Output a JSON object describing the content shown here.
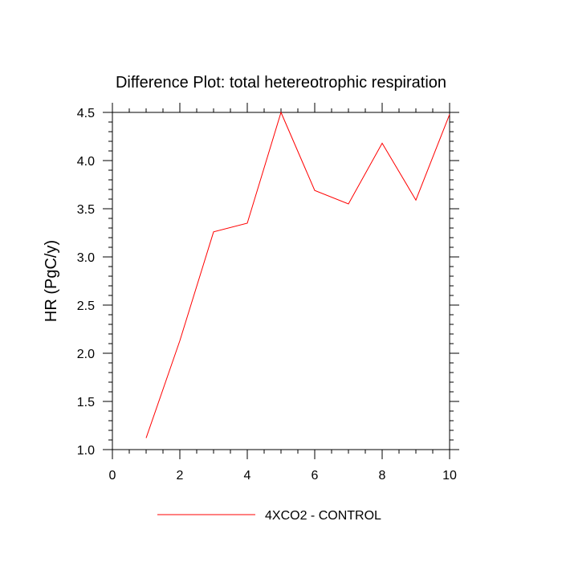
{
  "chart_data": {
    "type": "line",
    "title": "Difference Plot: total hetereotrophic respiration",
    "xlabel": "",
    "ylabel": "HR  (PgC/y)",
    "xlim": [
      0,
      10
    ],
    "ylim": [
      1.0,
      4.5
    ],
    "x_ticks": [
      0,
      2,
      4,
      6,
      8,
      10
    ],
    "x_tick_labels": [
      "0",
      "2",
      "4",
      "6",
      "8",
      "10"
    ],
    "y_ticks": [
      1.0,
      1.5,
      2.0,
      2.5,
      3.0,
      3.5,
      4.0,
      4.5
    ],
    "y_tick_labels": [
      "1.0",
      "1.5",
      "2.0",
      "2.5",
      "3.0",
      "3.5",
      "4.0",
      "4.5"
    ],
    "grid": false,
    "legend_position": "bottom",
    "series": [
      {
        "name": "4XCO2 - CONTROL",
        "color": "#ff0000",
        "x": [
          1,
          2,
          3,
          4,
          5,
          6,
          7,
          8,
          9,
          10
        ],
        "y": [
          1.12,
          2.13,
          3.26,
          3.35,
          4.5,
          3.69,
          3.55,
          4.18,
          3.59,
          4.48
        ]
      }
    ]
  }
}
